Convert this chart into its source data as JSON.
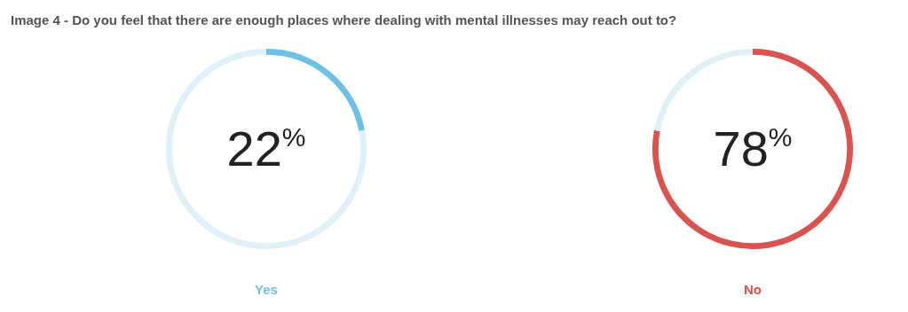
{
  "chart_data": [
    {
      "type": "donut",
      "title": "Image 4 - Do you feel that there are enough places where dealing with mental illnesses may reach out to?",
      "xlabel": "Yes",
      "categories": [
        null,
        null
      ],
      "values": [
        22,
        78
      ],
      "colors": [
        "#6ec1e4",
        "#dff0f8"
      ],
      "value_labels": [
        "22$^{%}$",
        null
      ],
      "legend": false
    },
    {
      "type": "donut",
      "xlabel": "No",
      "categories": [
        null,
        null
      ],
      "values": [
        78,
        22
      ],
      "colors": [
        "#d9534f",
        "#dff0f8"
      ],
      "value_labels": [
        "78$^{%}$",
        null
      ],
      "legend": false
    }
  ]
}
